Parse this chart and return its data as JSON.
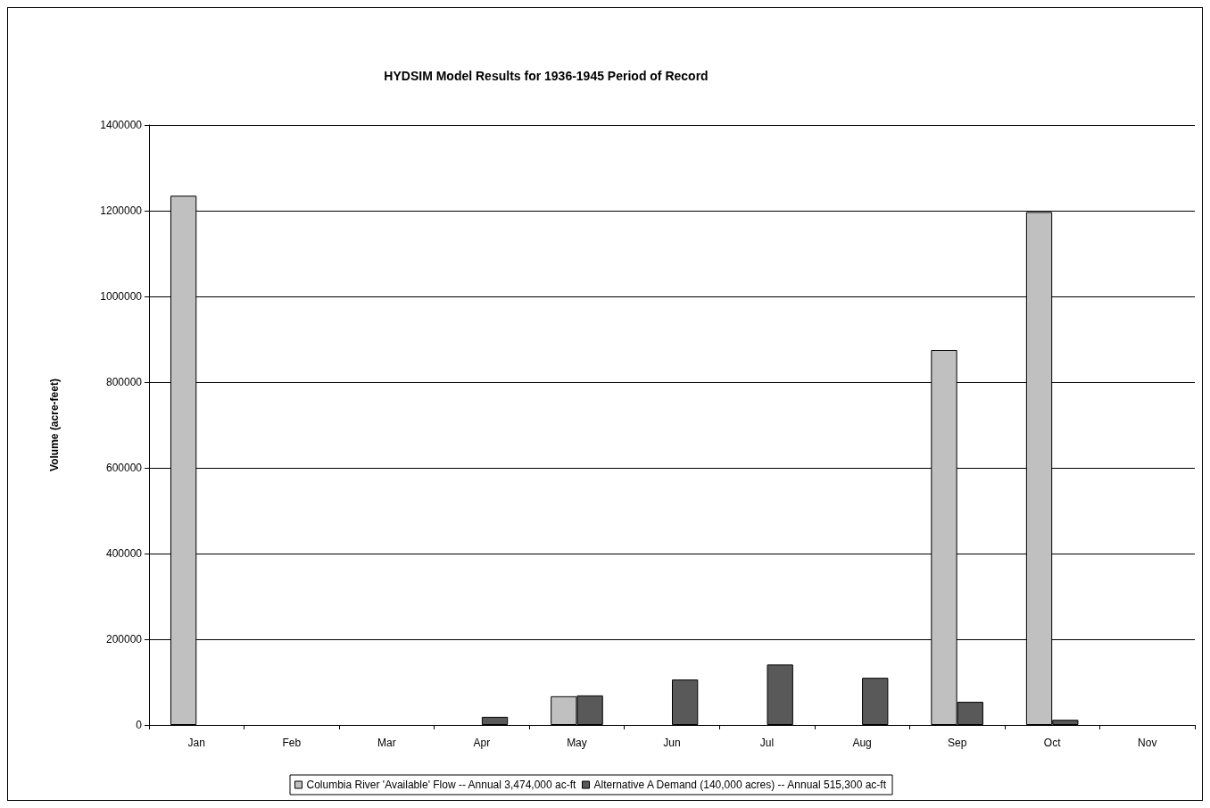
{
  "chart_data": {
    "type": "bar",
    "title": "HYDSIM Model Results for 1936-1945 Period of Record",
    "ylabel": "Volume (acre-feet)",
    "categories": [
      "Jan",
      "Feb",
      "Mar",
      "Apr",
      "May",
      "Jun",
      "Jul",
      "Aug",
      "Sep",
      "Oct",
      "Nov"
    ],
    "series": [
      {
        "name": "Columbia River 'Available' Flow -- Annual 3,474,000 ac-ft",
        "color": "#c0c0c0",
        "values": [
          1235000,
          0,
          0,
          0,
          67000,
          0,
          0,
          0,
          875000,
          1197000,
          0
        ]
      },
      {
        "name": "Alternative A Demand (140,000 acres) -- Annual 515,300 ac-ft",
        "color": "#595959",
        "values": [
          0,
          0,
          0,
          19000,
          69000,
          106000,
          141000,
          110000,
          54000,
          12000,
          0
        ]
      }
    ],
    "ylim": [
      0,
      1400000
    ],
    "yticks": [
      0,
      200000,
      400000,
      600000,
      800000,
      1000000,
      1200000,
      1400000
    ],
    "grid": "y",
    "legend": "bottom"
  }
}
